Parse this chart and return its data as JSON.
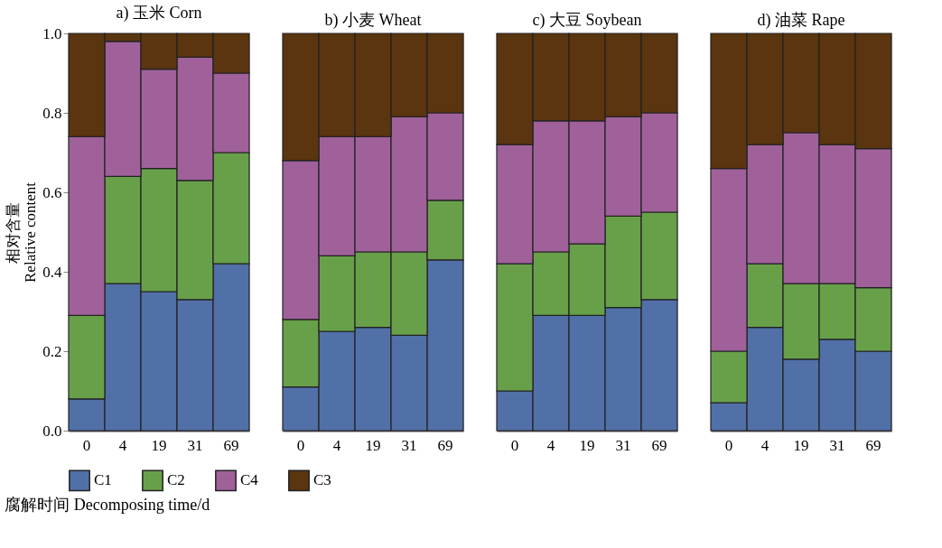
{
  "chart_data": [
    {
      "type": "bar",
      "stacked": true,
      "title": "a) 玉米 Corn",
      "ylabel": "相对含量\nRelative content",
      "xlabel": "腐解时间 Decomposing time/d",
      "legend": "bottom",
      "categories": [
        "0",
        "4",
        "19",
        "31",
        "69"
      ],
      "ylim": [
        0,
        1
      ],
      "yticks": [
        {
          "value": 0,
          "label": "0.0"
        },
        0.2,
        0.4,
        0.6,
        0.8,
        {
          "value": 1,
          "label": "1.0"
        }
      ],
      "series": [
        {
          "name": "C1",
          "color": "#5170a8",
          "values": [
            0.08,
            0.37,
            0.35,
            0.33,
            0.42
          ]
        },
        {
          "name": "C2",
          "color": "#68a04a",
          "values": [
            0.21,
            0.27,
            0.31,
            0.3,
            0.28
          ]
        },
        {
          "name": "C4",
          "color": "#a0619a",
          "values": [
            0.45,
            0.34,
            0.25,
            0.31,
            0.2
          ]
        },
        {
          "name": "C3",
          "color": "#5a3510",
          "values": [
            0.26,
            0.02,
            0.09,
            0.06,
            0.1
          ]
        }
      ]
    },
    {
      "type": "bar",
      "stacked": true,
      "title": "b) 小麦 Wheat",
      "legend": "bottom",
      "tick_labels": "x",
      "categories": [
        "0",
        "4",
        "19",
        "31",
        "69"
      ],
      "ylim": [
        0,
        1
      ],
      "series": [
        {
          "name": "C1",
          "color": "#5170a8",
          "values": [
            0.11,
            0.25,
            0.26,
            0.24,
            0.43
          ]
        },
        {
          "name": "C2",
          "color": "#68a04a",
          "values": [
            0.17,
            0.19,
            0.19,
            0.21,
            0.15
          ]
        },
        {
          "name": "C4",
          "color": "#a0619a",
          "values": [
            0.4,
            0.3,
            0.29,
            0.34,
            0.22
          ]
        },
        {
          "name": "C3",
          "color": "#5a3510",
          "values": [
            0.32,
            0.26,
            0.26,
            0.21,
            0.2
          ]
        }
      ]
    },
    {
      "type": "bar",
      "stacked": true,
      "title": "c) 大豆 Soybean",
      "legend": "bottom",
      "tick_labels": "x",
      "categories": [
        "0",
        "4",
        "19",
        "31",
        "69"
      ],
      "ylim": [
        0,
        1
      ],
      "series": [
        {
          "name": "C1",
          "color": "#5170a8",
          "values": [
            0.1,
            0.29,
            0.29,
            0.31,
            0.33
          ]
        },
        {
          "name": "C2",
          "color": "#68a04a",
          "values": [
            0.32,
            0.16,
            0.18,
            0.23,
            0.22
          ]
        },
        {
          "name": "C4",
          "color": "#a0619a",
          "values": [
            0.3,
            0.33,
            0.31,
            0.25,
            0.25
          ]
        },
        {
          "name": "C3",
          "color": "#5a3510",
          "values": [
            0.28,
            0.22,
            0.22,
            0.21,
            0.2
          ]
        }
      ]
    },
    {
      "type": "bar",
      "stacked": true,
      "title": "d) 油菜 Rape",
      "legend": "bottom",
      "tick_labels": "x",
      "categories": [
        "0",
        "4",
        "19",
        "31",
        "69"
      ],
      "ylim": [
        0,
        1
      ],
      "series": [
        {
          "name": "C1",
          "color": "#5170a8",
          "values": [
            0.07,
            0.26,
            0.18,
            0.23,
            0.2
          ]
        },
        {
          "name": "C2",
          "color": "#68a04a",
          "values": [
            0.13,
            0.16,
            0.19,
            0.14,
            0.16
          ]
        },
        {
          "name": "C4",
          "color": "#a0619a",
          "values": [
            0.46,
            0.3,
            0.38,
            0.35,
            0.35
          ]
        },
        {
          "name": "C3",
          "color": "#5a3510",
          "values": [
            0.34,
            0.28,
            0.25,
            0.28,
            0.29
          ]
        }
      ]
    }
  ]
}
